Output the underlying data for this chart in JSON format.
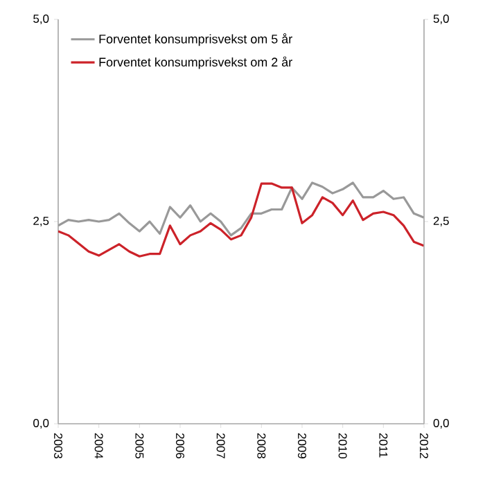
{
  "chart_data": {
    "type": "line",
    "x": [
      2003.0,
      2003.25,
      2003.5,
      2003.75,
      2004.0,
      2004.25,
      2004.5,
      2004.75,
      2005.0,
      2005.25,
      2005.5,
      2005.75,
      2006.0,
      2006.25,
      2006.5,
      2006.75,
      2007.0,
      2007.25,
      2007.5,
      2007.75,
      2008.0,
      2008.25,
      2008.5,
      2008.75,
      2009.0,
      2009.25,
      2009.5,
      2009.75,
      2010.0,
      2010.25,
      2010.5,
      2010.75,
      2011.0,
      2011.25,
      2011.5,
      2011.75,
      2012.0
    ],
    "series": [
      {
        "name": "Forventet konsumprisvekst om 5 år",
        "color": "#999999",
        "values": [
          2.45,
          2.52,
          2.5,
          2.52,
          2.5,
          2.52,
          2.6,
          2.48,
          2.38,
          2.5,
          2.35,
          2.68,
          2.55,
          2.7,
          2.5,
          2.6,
          2.5,
          2.33,
          2.42,
          2.6,
          2.6,
          2.65,
          2.65,
          2.92,
          2.78,
          2.98,
          2.93,
          2.85,
          2.9,
          2.98,
          2.8,
          2.8,
          2.88,
          2.78,
          2.8,
          2.6,
          2.55
        ]
      },
      {
        "name": "Forventet konsumprisvekst om 2 år",
        "color": "#cc2229",
        "values": [
          2.38,
          2.33,
          2.23,
          2.13,
          2.08,
          2.15,
          2.22,
          2.13,
          2.07,
          2.1,
          2.1,
          2.45,
          2.22,
          2.33,
          2.38,
          2.48,
          2.4,
          2.28,
          2.33,
          2.55,
          2.97,
          2.97,
          2.92,
          2.92,
          2.48,
          2.58,
          2.8,
          2.73,
          2.58,
          2.76,
          2.52,
          2.6,
          2.62,
          2.58,
          2.45,
          2.25,
          2.2
        ]
      }
    ],
    "xlim": [
      2003,
      2012
    ],
    "xticks": [
      2003,
      2004,
      2005,
      2006,
      2007,
      2008,
      2009,
      2010,
      2011,
      2012
    ],
    "ylim": [
      0,
      5
    ],
    "yticks": [
      {
        "value": 0,
        "label": "0,0"
      },
      {
        "value": 2.5,
        "label": "2,5"
      },
      {
        "value": 5,
        "label": "5,0"
      }
    ],
    "y2lim": [
      0,
      5
    ],
    "y2ticks": [
      {
        "value": 0,
        "label": "0,0"
      },
      {
        "value": 2.5,
        "label": "2,5"
      },
      {
        "value": 5,
        "label": "5,0"
      }
    ],
    "legend": "top left",
    "marker": "none",
    "line_style": "solid"
  }
}
